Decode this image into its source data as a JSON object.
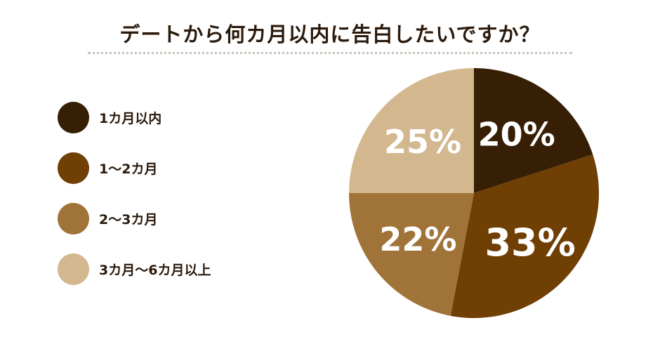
{
  "chart_data": {
    "type": "pie",
    "title": "デートから何カ月以内に告白したいですか？",
    "categories": [
      "1カ月以内",
      "1〜2カ月",
      "2〜3カ月",
      "3カ月〜6カ月以上"
    ],
    "values": [
      20,
      33,
      22,
      25
    ],
    "value_labels": [
      "20%",
      "33%",
      "22%",
      "25%"
    ],
    "colors": [
      "#361f04",
      "#6f3f04",
      "#a07338",
      "#d2b78f"
    ],
    "start_angle_deg": 0,
    "direction": "clockwise",
    "legend_position": "left"
  }
}
